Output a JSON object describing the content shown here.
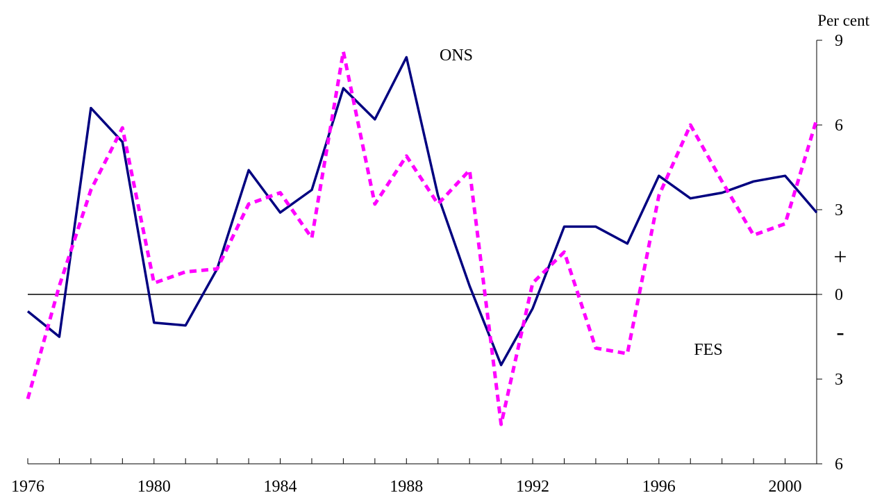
{
  "chart_data": {
    "type": "line",
    "unit_label": "Per cent",
    "x": [
      1976,
      1977,
      1978,
      1979,
      1980,
      1981,
      1982,
      1983,
      1984,
      1985,
      1986,
      1987,
      1988,
      1989,
      1990,
      1991,
      1992,
      1993,
      1994,
      1995,
      1996,
      1997,
      1998,
      1999,
      2000,
      2001
    ],
    "x_tick_labels": [
      "1976",
      "1980",
      "1984",
      "1988",
      "1992",
      "1996",
      "2000"
    ],
    "x_tick_values": [
      1976,
      1980,
      1984,
      1988,
      1992,
      1996,
      2000
    ],
    "y_tick_values": [
      6,
      3,
      0,
      -3,
      -6,
      -9
    ],
    "y_tick_labels": [
      "6",
      "3",
      "0",
      "3",
      "6",
      "9"
    ],
    "ylim": [
      -9,
      6
    ],
    "y_direction": "inverted",
    "sign_labels": {
      "plus": "+",
      "minus": "-"
    },
    "series": [
      {
        "name": "ONS",
        "color": "#000080",
        "style": "solid",
        "values": [
          0.6,
          1.5,
          -6.6,
          -5.4,
          1.0,
          1.1,
          -0.9,
          -4.4,
          -2.9,
          -3.7,
          -7.3,
          -6.2,
          -8.4,
          -3.5,
          -0.3,
          2.5,
          0.5,
          -2.4,
          -2.4,
          -1.8,
          -4.2,
          -3.4,
          -3.6,
          -4.0,
          -4.2,
          -2.9
        ]
      },
      {
        "name": "FES",
        "color": "#ff00ff",
        "style": "dashed",
        "values": [
          3.7,
          -0.3,
          -3.7,
          -5.9,
          -0.4,
          -0.8,
          -0.9,
          -3.2,
          -3.6,
          -2.0,
          -8.6,
          -3.2,
          -4.9,
          -3.2,
          -4.4,
          4.6,
          -0.4,
          -1.5,
          1.9,
          2.1,
          -3.5,
          -6.0,
          -4.0,
          -2.1,
          -2.5,
          -6.2
        ]
      }
    ]
  }
}
